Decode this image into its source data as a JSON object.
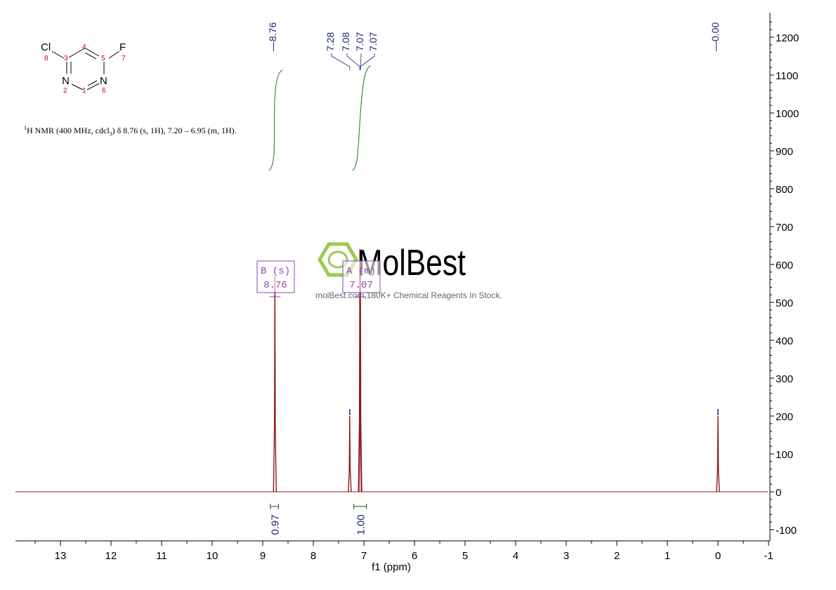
{
  "nmr_description": {
    "sup": "1",
    "part1": "H NMR (400 MHz, cdcl",
    "sub": "3",
    "part2": ") δ 8.76 (s, 1H), 7.20 – 6.95 (m, 1H)."
  },
  "structure": {
    "atoms": [
      {
        "symbol": "Cl",
        "number": "8"
      },
      {
        "symbol": "",
        "number": "3"
      },
      {
        "symbol": "",
        "number": "4"
      },
      {
        "symbol": "",
        "number": "5"
      },
      {
        "symbol": "F",
        "number": "7"
      },
      {
        "symbol": "N",
        "number": "2"
      },
      {
        "symbol": "",
        "number": "1"
      },
      {
        "symbol": "N",
        "number": "6"
      }
    ]
  },
  "watermark": {
    "brand": "MolBest",
    "tagline": "molBest.com,180K+ Chemical Reagents In Stock."
  },
  "colors": {
    "spectrum": "#8b1a1a",
    "peak_label": "#1a237e",
    "integral": "#2e7d32",
    "multiplet": "#8e44ad",
    "atom_number": "#cc0000",
    "watermark_green": "#8dc63f"
  },
  "chart_data": {
    "type": "line",
    "xlabel": "f1 (ppm)",
    "xlim": [
      14,
      -1
    ],
    "x_reversed": true,
    "ylim": [
      -120,
      1260
    ],
    "x_ticks": [
      "13",
      "12",
      "11",
      "10",
      "9",
      "8",
      "7",
      "6",
      "5",
      "4",
      "3",
      "2",
      "1",
      "0",
      "-1"
    ],
    "y_ticks": [
      "-100",
      "0",
      "100",
      "200",
      "300",
      "400",
      "500",
      "600",
      "700",
      "800",
      "900",
      "1000",
      "1100",
      "1200"
    ],
    "y_axis_side": "right",
    "peaks": [
      {
        "ppm": 8.76,
        "height": 570
      },
      {
        "ppm": 7.28,
        "height": 200
      },
      {
        "ppm": 7.08,
        "height": 640
      },
      {
        "ppm": 7.07,
        "height": 640
      },
      {
        "ppm": 0.0,
        "height": 200
      }
    ],
    "peak_labels": [
      {
        "ppm": 8.76,
        "label": "8.76"
      },
      {
        "ppm": 7.28,
        "label": "7.28"
      },
      {
        "ppm": 7.08,
        "label": "7.08"
      },
      {
        "ppm": 7.07,
        "label": "7.07"
      },
      {
        "ppm": 7.07,
        "label": "7.07"
      },
      {
        "ppm": 0.0,
        "label": "0.00"
      }
    ],
    "multiplets": [
      {
        "ppm": 8.76,
        "type": "B (s)",
        "shift": "8.76"
      },
      {
        "ppm": 7.07,
        "type": "A (m)",
        "shift": "7.07"
      }
    ],
    "integrals": [
      {
        "from": 8.85,
        "to": 8.69,
        "value": "0.97"
      },
      {
        "from": 7.2,
        "to": 6.95,
        "value": "1.00"
      }
    ]
  }
}
